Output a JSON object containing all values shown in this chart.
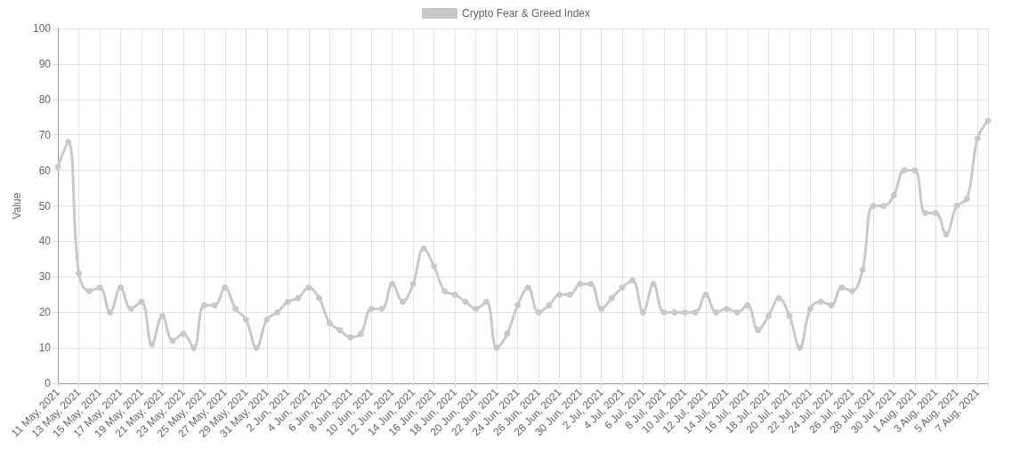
{
  "chart_data": {
    "type": "line",
    "ylabel": "Value",
    "categories": [
      "11 May, 2021",
      null,
      "13 May, 2021",
      null,
      "15 May, 2021",
      null,
      "17 May, 2021",
      null,
      "19 May, 2021",
      null,
      "21 May, 2021",
      null,
      "23 May, 2021",
      null,
      "25 May, 2021",
      null,
      "27 May, 2021",
      null,
      "29 May, 2021",
      null,
      "31 May, 2021",
      null,
      "2 Jun, 2021",
      null,
      "4 Jun, 2021",
      null,
      "6 Jun, 2021",
      null,
      "8 Jun, 2021",
      null,
      "10 Jun, 2021",
      null,
      "12 Jun, 2021",
      null,
      "14 Jun, 2021",
      null,
      "16 Jun, 2021",
      null,
      "18 Jun, 2021",
      null,
      "20 Jun, 2021",
      null,
      "22 Jun, 2021",
      null,
      "24 Jun, 2021",
      null,
      "26 Jun, 2021",
      null,
      "28 Jun, 2021",
      null,
      "30 Jun, 2021",
      null,
      "2 Jul, 2021",
      null,
      "4 Jul, 2021",
      null,
      "6 Jul, 2021",
      null,
      "8 Jul, 2021",
      null,
      "10 Jul, 2021",
      null,
      "12 Jul, 2021",
      null,
      "14 Jul, 2021",
      null,
      "16 Jul, 2021",
      null,
      "18 Jul, 2021",
      null,
      "20 Jul, 2021",
      null,
      "22 Jul, 2021",
      null,
      "24 Jul, 2021",
      null,
      "26 Jul, 2021",
      null,
      "28 Jul, 2021",
      null,
      "30 Jul, 2021",
      null,
      "1 Aug, 2021",
      null,
      "3 Aug, 2021",
      null,
      "5 Aug, 2021",
      null,
      "7 Aug, 2021",
      null
    ],
    "series": [
      {
        "name": "Crypto Fear & Greed Index",
        "color": "#c9c9c9",
        "values": [
          61,
          68,
          31,
          26,
          27,
          20,
          27,
          21,
          23,
          11,
          19,
          12,
          14,
          10,
          22,
          22,
          27,
          21,
          18,
          10,
          18,
          20,
          23,
          24,
          27,
          24,
          17,
          15,
          13,
          14,
          21,
          21,
          28,
          23,
          28,
          38,
          33,
          26,
          25,
          23,
          21,
          23,
          10,
          14,
          22,
          27,
          20,
          22,
          25,
          25,
          28,
          28,
          21,
          24,
          27,
          29,
          20,
          28,
          20,
          20,
          20,
          20,
          25,
          20,
          21,
          20,
          22,
          15,
          19,
          24,
          19,
          10,
          21,
          23,
          22,
          27,
          26,
          32,
          50,
          50,
          53,
          60,
          60,
          48,
          48,
          42,
          50,
          52,
          69,
          74
        ]
      }
    ],
    "ylim": [
      0,
      100
    ],
    "yticks": [
      0,
      10,
      20,
      30,
      40,
      50,
      60,
      70,
      80,
      90,
      100
    ],
    "grid": true,
    "legend": "top",
    "marker": "circle",
    "line_style": "solid"
  }
}
